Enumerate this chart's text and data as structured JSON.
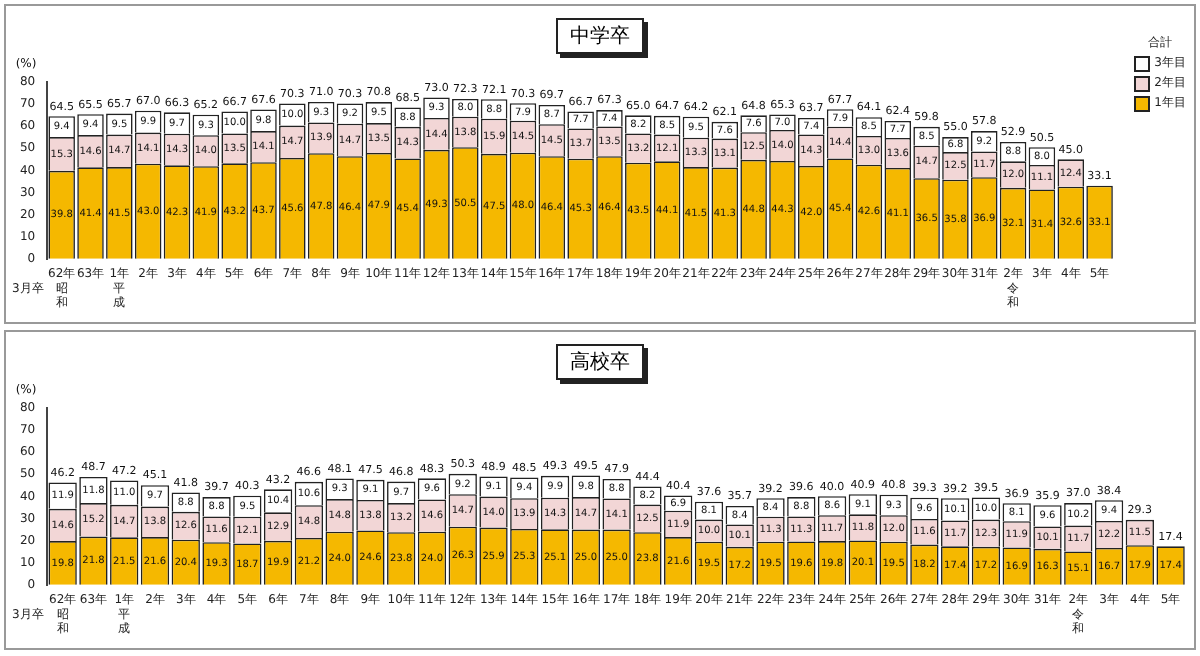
{
  "chart_data": [
    {
      "type": "bar",
      "title": "中学卒",
      "ylabel": "(%)",
      "legend_title": "合計",
      "legend": "top right",
      "stacked": true,
      "annotations": [
        "3月卒"
      ],
      "categories": [
        "62年昭和",
        "63年",
        "1年平成",
        "2年",
        "3年",
        "4年",
        "5年",
        "6年",
        "7年",
        "8年",
        "9年",
        "10年",
        "11年",
        "12年",
        "13年",
        "14年",
        "15年",
        "16年",
        "17年",
        "18年",
        "19年",
        "20年",
        "21年",
        "22年",
        "23年",
        "24年",
        "25年",
        "26年",
        "27年",
        "28年",
        "29年",
        "30年",
        "31年",
        "2年令和",
        "3年",
        "4年",
        "5年"
      ],
      "ylim": [
        0,
        80
      ],
      "yticks": [
        0,
        10,
        20,
        30,
        40,
        50,
        60,
        70,
        80
      ],
      "series": [
        {
          "name": "1年目",
          "color": "#f5b800",
          "values": [
            39.8,
            41.4,
            41.5,
            43.0,
            42.3,
            41.9,
            43.2,
            43.7,
            45.6,
            47.8,
            46.4,
            47.9,
            45.4,
            49.3,
            50.5,
            47.5,
            48.0,
            46.4,
            45.3,
            46.4,
            43.5,
            44.1,
            41.5,
            41.3,
            44.8,
            44.3,
            42.0,
            45.4,
            42.6,
            41.1,
            36.5,
            35.8,
            36.9,
            32.1,
            31.4,
            32.6,
            33.1
          ],
          "value_labels": [
            "39.8",
            "41.4",
            "41.5",
            "43.0",
            "42.3",
            "41.9",
            "43.2",
            "43.7",
            "45.6",
            "47.8",
            "46.4",
            "47.9",
            "45.4",
            "49.3",
            "50.5",
            "47.5",
            "48.0",
            "46.4",
            "45.3",
            "46.4",
            "43.5",
            "44.1",
            "41.5",
            "41.3",
            "44.8",
            "44.3",
            "42.0",
            "45.4",
            "42.6",
            "41.1",
            "36.5",
            "35.8",
            "36.9",
            "32.1",
            "31.4",
            "32.6",
            "33.1"
          ]
        },
        {
          "name": "2年目",
          "color": "#f2d6d6",
          "values": [
            15.3,
            14.6,
            14.7,
            14.1,
            14.3,
            14.0,
            13.5,
            14.1,
            14.7,
            13.9,
            14.7,
            13.5,
            14.3,
            14.4,
            13.8,
            15.9,
            14.5,
            14.5,
            13.7,
            13.5,
            13.2,
            12.1,
            13.3,
            13.1,
            12.5,
            14.0,
            14.3,
            14.4,
            13.0,
            13.6,
            14.7,
            12.5,
            11.7,
            12.0,
            11.1,
            12.4,
            null
          ],
          "value_labels": [
            "15.3",
            "14.6",
            "14.7",
            "14.1",
            "14.3",
            "14.0",
            "13.5",
            "14.1",
            "14.7",
            "13.9",
            "14.7",
            "13.5",
            "14.3",
            "14.4",
            "13.8",
            "15.9",
            "14.5",
            "14.5",
            "13.7",
            "13.5",
            "13.2",
            "12.1",
            "13.3",
            "13.1",
            "12.5",
            "14.0",
            "14.3",
            "14.4",
            "13.0",
            "13.6",
            "14.7",
            "12.5",
            "11.7",
            "12.0",
            "11.1",
            "12.4",
            null
          ]
        },
        {
          "name": "3年目",
          "color": "#ffffff",
          "values": [
            9.4,
            9.4,
            9.5,
            9.9,
            9.7,
            9.3,
            10.0,
            9.8,
            10.0,
            9.3,
            9.2,
            9.5,
            8.8,
            9.3,
            8.0,
            8.8,
            7.9,
            8.7,
            7.7,
            7.4,
            8.2,
            8.5,
            9.5,
            7.6,
            7.6,
            7.0,
            7.4,
            7.9,
            8.5,
            7.7,
            8.5,
            6.8,
            9.2,
            8.8,
            8.0,
            null,
            null
          ],
          "value_labels": [
            "9.4",
            "9.4",
            "9.5",
            "9.9",
            "9.7",
            "9.3",
            "10.0",
            "9.8",
            "10.0",
            "9.3",
            "9.2",
            "9.5",
            "8.8",
            "9.3",
            "8.0",
            "8.8",
            "7.9",
            "8.7",
            "7.7",
            "7.4",
            "8.2",
            "8.5",
            "9.5",
            "7.6",
            "7.6",
            "7.0",
            "7.4",
            "7.9",
            "8.5",
            "7.7",
            "8.5",
            "6.8",
            "9.2",
            "8.8",
            "8.0",
            null,
            null
          ]
        }
      ],
      "totals": [
        "64.5",
        "65.5",
        "65.7",
        "67.0",
        "66.3",
        "65.2",
        "66.7",
        "67.6",
        "70.3",
        "71.0",
        "70.3",
        "70.8",
        "68.5",
        "73.0",
        "72.3",
        "72.1",
        "70.3",
        "69.7",
        "66.7",
        "67.3",
        "65.0",
        "64.7",
        "64.2",
        "62.1",
        "64.8",
        "65.3",
        "63.7",
        "67.7",
        "64.1",
        "62.4",
        "59.8",
        "55.0",
        "57.8",
        "52.9",
        "50.5",
        "45.0",
        "33.1"
      ]
    },
    {
      "type": "bar",
      "title": "高校卒",
      "ylabel": "(%)",
      "stacked": true,
      "annotations": [
        "3月卒"
      ],
      "categories": [
        "62年昭和",
        "63年",
        "1年平成",
        "2年",
        "3年",
        "4年",
        "5年",
        "6年",
        "7年",
        "8年",
        "9年",
        "10年",
        "11年",
        "12年",
        "13年",
        "14年",
        "15年",
        "16年",
        "17年",
        "18年",
        "19年",
        "20年",
        "21年",
        "22年",
        "23年",
        "24年",
        "25年",
        "26年",
        "27年",
        "28年",
        "29年",
        "30年",
        "31年",
        "2年令和",
        "3年",
        "4年",
        "5年"
      ],
      "ylim": [
        0,
        80
      ],
      "yticks": [
        0,
        10,
        20,
        30,
        40,
        50,
        60,
        70,
        80
      ],
      "series": [
        {
          "color": "#f5b800",
          "values": [
            19.8,
            21.8,
            21.5,
            21.6,
            20.4,
            19.3,
            18.7,
            19.9,
            21.2,
            24.0,
            24.6,
            23.8,
            24.0,
            26.3,
            25.9,
            25.3,
            25.1,
            25.0,
            25.0,
            23.8,
            21.6,
            19.5,
            17.2,
            19.5,
            19.6,
            19.8,
            20.1,
            19.5,
            18.2,
            17.4,
            17.2,
            16.9,
            16.3,
            15.1,
            16.7,
            17.9,
            17.4
          ],
          "value_labels": [
            "19.8",
            "21.8",
            "21.5",
            "21.6",
            "20.4",
            "19.3",
            "18.7",
            "19.9",
            "21.2",
            "24.0",
            "24.6",
            "23.8",
            "24.0",
            "26.3",
            "25.9",
            "25.3",
            "25.1",
            "25.0",
            "25.0",
            "23.8",
            "21.6",
            "19.5",
            "17.2",
            "19.5",
            "19.6",
            "19.8",
            "20.1",
            "19.5",
            "18.2",
            "17.4",
            "17.2",
            "16.9",
            "16.3",
            "15.1",
            "16.7",
            "17.9",
            "17.4"
          ]
        },
        {
          "color": "#f2d6d6",
          "values": [
            14.6,
            15.2,
            14.7,
            13.8,
            12.6,
            11.6,
            12.1,
            12.9,
            14.8,
            14.8,
            13.8,
            13.2,
            14.6,
            14.7,
            14.0,
            13.9,
            14.3,
            14.7,
            14.1,
            12.5,
            11.9,
            10.0,
            10.1,
            11.3,
            11.3,
            11.7,
            11.8,
            12.0,
            11.6,
            11.7,
            12.3,
            11.9,
            10.1,
            11.7,
            12.2,
            11.5,
            null
          ],
          "value_labels": [
            "14.6",
            "15.2",
            "14.7",
            "13.8",
            "12.6",
            "11.6",
            "12.1",
            "12.9",
            "14.8",
            "14.8",
            "13.8",
            "13.2",
            "14.6",
            "14.7",
            "14.0",
            "13.9",
            "14.3",
            "14.7",
            "14.1",
            "12.5",
            "11.9",
            "10.0",
            "10.1",
            "11.3",
            "11.3",
            "11.7",
            "11.8",
            "12.0",
            "11.6",
            "11.7",
            "12.3",
            "11.9",
            "10.1",
            "11.7",
            "12.2",
            "11.5",
            null
          ]
        },
        {
          "color": "#ffffff",
          "values": [
            11.9,
            11.8,
            11.0,
            9.7,
            8.8,
            8.8,
            9.5,
            10.4,
            10.6,
            9.3,
            9.1,
            9.7,
            9.6,
            9.2,
            9.1,
            9.4,
            9.9,
            9.8,
            8.8,
            8.2,
            6.9,
            8.1,
            8.4,
            8.4,
            8.8,
            8.6,
            9.1,
            9.3,
            9.6,
            10.1,
            10.0,
            8.1,
            9.6,
            10.2,
            9.4,
            null,
            null
          ],
          "value_labels": [
            "11.9",
            "11.8",
            "11.0",
            "9.7",
            "8.8",
            "8.8",
            "9.5",
            "10.4",
            "10.6",
            "9.3",
            "9.1",
            "9.7",
            "9.6",
            "9.2",
            "9.1",
            "9.4",
            "9.9",
            "9.8",
            "8.8",
            "8.2",
            "6.9",
            "8.1",
            "8.4",
            "8.4",
            "8.8",
            "8.6",
            "9.1",
            "9.3",
            "9.6",
            "10.1",
            "10.0",
            "8.1",
            "9.6",
            "10.2",
            "9.4",
            null,
            null
          ]
        }
      ],
      "totals": [
        "46.2",
        "48.7",
        "47.2",
        "45.1",
        "41.8",
        "39.7",
        "40.3",
        "43.2",
        "46.6",
        "48.1",
        "47.5",
        "46.8",
        "48.3",
        "50.3",
        "48.9",
        "48.5",
        "49.3",
        "49.5",
        "47.9",
        "44.4",
        "40.4",
        "37.6",
        "35.7",
        "39.2",
        "39.6",
        "40.0",
        "40.9",
        "40.8",
        "39.3",
        "39.2",
        "39.5",
        "36.9",
        "35.9",
        "37.0",
        "38.4",
        "29.3",
        "17.4"
      ]
    }
  ]
}
